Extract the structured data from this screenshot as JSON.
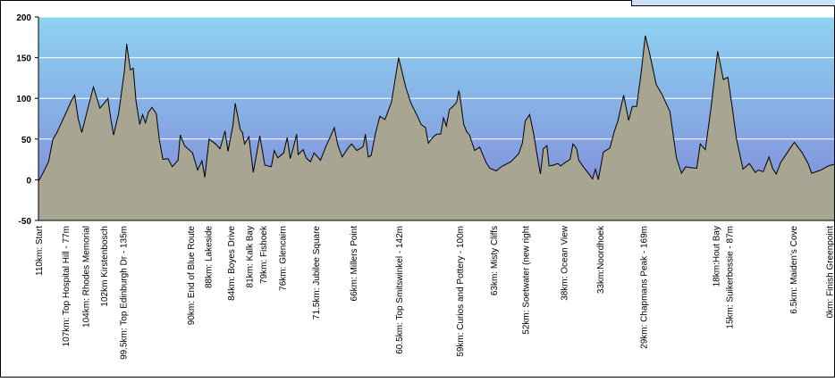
{
  "chart_data": {
    "type": "area",
    "title": "",
    "xlabel": "",
    "ylabel": "",
    "ylim": [
      -50,
      200
    ],
    "yticks": [
      -50,
      0,
      50,
      100,
      150,
      200
    ],
    "grid": true,
    "background_gradient": [
      "#8ed2f0",
      "#7f86d8"
    ],
    "fill_color": "#a8a693",
    "line_color": "#000000",
    "x_range": [
      0,
      110
    ],
    "series": [
      {
        "points": [
          [
            0,
            -2
          ],
          [
            0.6,
            8
          ],
          [
            1.4,
            22
          ],
          [
            2.0,
            50
          ],
          [
            2.5,
            57
          ],
          [
            3.7,
            80
          ],
          [
            4.6,
            98
          ],
          [
            5.0,
            104
          ],
          [
            5.5,
            75
          ],
          [
            6.0,
            58
          ],
          [
            6.7,
            83
          ],
          [
            7.6,
            114
          ],
          [
            8.5,
            88
          ],
          [
            9.0,
            93
          ],
          [
            9.6,
            100
          ],
          [
            10.0,
            75
          ],
          [
            10.4,
            55
          ],
          [
            11.1,
            82
          ],
          [
            11.9,
            135
          ],
          [
            12.2,
            167
          ],
          [
            12.7,
            135
          ],
          [
            13.1,
            137
          ],
          [
            13.5,
            96
          ],
          [
            14.0,
            68
          ],
          [
            14.4,
            80
          ],
          [
            14.8,
            70
          ],
          [
            15.2,
            83
          ],
          [
            15.7,
            89
          ],
          [
            16.3,
            81
          ],
          [
            16.7,
            50
          ],
          [
            17.2,
            25
          ],
          [
            17.9,
            26
          ],
          [
            18.5,
            16
          ],
          [
            19.3,
            24
          ],
          [
            19.6,
            55
          ],
          [
            20.2,
            42
          ],
          [
            21.3,
            33
          ],
          [
            22.0,
            12
          ],
          [
            22.6,
            23
          ],
          [
            23.0,
            3
          ],
          [
            23.6,
            50
          ],
          [
            24.5,
            44
          ],
          [
            25.1,
            38
          ],
          [
            25.8,
            60
          ],
          [
            26.2,
            35
          ],
          [
            26.9,
            67
          ],
          [
            27.2,
            94
          ],
          [
            27.9,
            62
          ],
          [
            28.2,
            58
          ],
          [
            28.5,
            44
          ],
          [
            29.1,
            53
          ],
          [
            29.7,
            9
          ],
          [
            30.6,
            54
          ],
          [
            31.3,
            18
          ],
          [
            32.2,
            16
          ],
          [
            32.6,
            36
          ],
          [
            33.1,
            27
          ],
          [
            33.9,
            33
          ],
          [
            34.4,
            52
          ],
          [
            34.8,
            26
          ],
          [
            35.2,
            38
          ],
          [
            35.7,
            56
          ],
          [
            35.9,
            31
          ],
          [
            36.6,
            37
          ],
          [
            37.0,
            27
          ],
          [
            37.6,
            22
          ],
          [
            38.1,
            33
          ],
          [
            39.0,
            24
          ],
          [
            39.7,
            40
          ],
          [
            40.4,
            54
          ],
          [
            40.9,
            64
          ],
          [
            41.4,
            42
          ],
          [
            42.0,
            28
          ],
          [
            42.8,
            39
          ],
          [
            43.3,
            44
          ],
          [
            44.0,
            36
          ],
          [
            44.6,
            39
          ],
          [
            44.9,
            41
          ],
          [
            45.2,
            56
          ],
          [
            45.6,
            28
          ],
          [
            46.0,
            30
          ],
          [
            46.6,
            57
          ],
          [
            47.2,
            78
          ],
          [
            47.9,
            74
          ],
          [
            48.8,
            95
          ],
          [
            49.8,
            150
          ],
          [
            50.8,
            113
          ],
          [
            51.5,
            94
          ],
          [
            52.4,
            78
          ],
          [
            52.9,
            68
          ],
          [
            53.5,
            64
          ],
          [
            53.9,
            45
          ],
          [
            54.6,
            53
          ],
          [
            55.1,
            56
          ],
          [
            55.6,
            56
          ],
          [
            56.0,
            76
          ],
          [
            56.4,
            66
          ],
          [
            56.8,
            86
          ],
          [
            57.3,
            90
          ],
          [
            57.8,
            95
          ],
          [
            58.1,
            109
          ],
          [
            58.2,
            107
          ],
          [
            58.8,
            68
          ],
          [
            59.2,
            59
          ],
          [
            59.6,
            55
          ],
          [
            60.3,
            36
          ],
          [
            61.0,
            40
          ],
          [
            61.9,
            21
          ],
          [
            62.4,
            14
          ],
          [
            63.3,
            11
          ],
          [
            64.0,
            16
          ],
          [
            65.3,
            22
          ],
          [
            66.4,
            32
          ],
          [
            66.9,
            45
          ],
          [
            67.3,
            72
          ],
          [
            67.9,
            80
          ],
          [
            68.5,
            55
          ],
          [
            69.0,
            27
          ],
          [
            69.4,
            7
          ],
          [
            69.8,
            38
          ],
          [
            70.3,
            42
          ],
          [
            70.6,
            17
          ],
          [
            71.2,
            18
          ],
          [
            71.8,
            20
          ],
          [
            72.2,
            17
          ],
          [
            72.8,
            21
          ],
          [
            73.5,
            25
          ],
          [
            73.9,
            44
          ],
          [
            74.4,
            38
          ],
          [
            74.7,
            24
          ],
          [
            75.4,
            15
          ],
          [
            76.2,
            6
          ],
          [
            76.6,
            1
          ],
          [
            77.0,
            13
          ],
          [
            77.4,
            0
          ],
          [
            78.1,
            34
          ],
          [
            79.0,
            39
          ],
          [
            79.6,
            59
          ],
          [
            80.1,
            72
          ],
          [
            80.9,
            104
          ],
          [
            81.6,
            73
          ],
          [
            82.1,
            90
          ],
          [
            82.7,
            90
          ],
          [
            83.3,
            130
          ],
          [
            83.9,
            177
          ],
          [
            84.5,
            155
          ],
          [
            85.4,
            117
          ],
          [
            86.2,
            105
          ],
          [
            87.3,
            84
          ],
          [
            88.2,
            27
          ],
          [
            88.9,
            8
          ],
          [
            89.5,
            16
          ],
          [
            90.1,
            15
          ],
          [
            91.0,
            14
          ],
          [
            91.5,
            44
          ],
          [
            92.2,
            37
          ],
          [
            93.0,
            90
          ],
          [
            93.9,
            158
          ],
          [
            94.7,
            123
          ],
          [
            95.3,
            126
          ],
          [
            95.9,
            90
          ],
          [
            96.5,
            50
          ],
          [
            97.4,
            13
          ],
          [
            98.3,
            20
          ],
          [
            99.1,
            9
          ],
          [
            99.5,
            12
          ],
          [
            100.2,
            10
          ],
          [
            101.0,
            28
          ],
          [
            101.5,
            14
          ],
          [
            102.0,
            7
          ],
          [
            102.6,
            21
          ],
          [
            103.8,
            37
          ],
          [
            104.5,
            46
          ],
          [
            105.6,
            33
          ],
          [
            106.4,
            20
          ],
          [
            106.9,
            8
          ],
          [
            108.2,
            12
          ],
          [
            109.2,
            17
          ],
          [
            110.0,
            19
          ]
        ]
      }
    ],
    "markers": [
      {
        "label": "110km: Start",
        "at": 0.0
      },
      {
        "label": "107km: Top Hospital Hill - 77m",
        "at": 3.7
      },
      {
        "label": "104km: Rhodes Memorial",
        "at": 6.5
      },
      {
        "label": "102km Kirstenbosch",
        "at": 9.0
      },
      {
        "label": "99.5km: Top Edinburgh Dr - 135m",
        "at": 11.7
      },
      {
        "label": "90km: End of Blue Route",
        "at": 21.0
      },
      {
        "label": "88km: Lakeside",
        "at": 23.4
      },
      {
        "label": "84km: Boyes Drive",
        "at": 26.6
      },
      {
        "label": "81km: Kalk Bay",
        "at": 29.1
      },
      {
        "label": "79km: Fishoek",
        "at": 31.0
      },
      {
        "label": "76km: Glencairn",
        "at": 33.7
      },
      {
        "label": "71.5km: Jubilee Square",
        "at": 38.3
      },
      {
        "label": "66km: Millers Point",
        "at": 43.5
      },
      {
        "label": "60.5km: Top Smitswinkel - 142m",
        "at": 49.8
      },
      {
        "label": "59km: Curios and Pottery - 100m",
        "at": 58.2
      },
      {
        "label": "63km: Misty Cliffs",
        "at": 62.9
      },
      {
        "label": "52km: Soetwater (new right",
        "at": 67.3
      },
      {
        "label": "38km: Ocean View",
        "at": 72.6
      },
      {
        "label": "33km:Noordhoek",
        "at": 77.6
      },
      {
        "label": "29km: Chapmans Peak - 169m",
        "at": 83.6
      },
      {
        "label": "18km:Hout Bay",
        "at": 93.6
      },
      {
        "label": "15km: Suikerbossie - 87m",
        "at": 95.5
      },
      {
        "label": "6.5km: Maiden's Cove",
        "at": 104.3
      },
      {
        "label": "0km: Finish Greenpoint",
        "at": 109.3
      }
    ]
  }
}
